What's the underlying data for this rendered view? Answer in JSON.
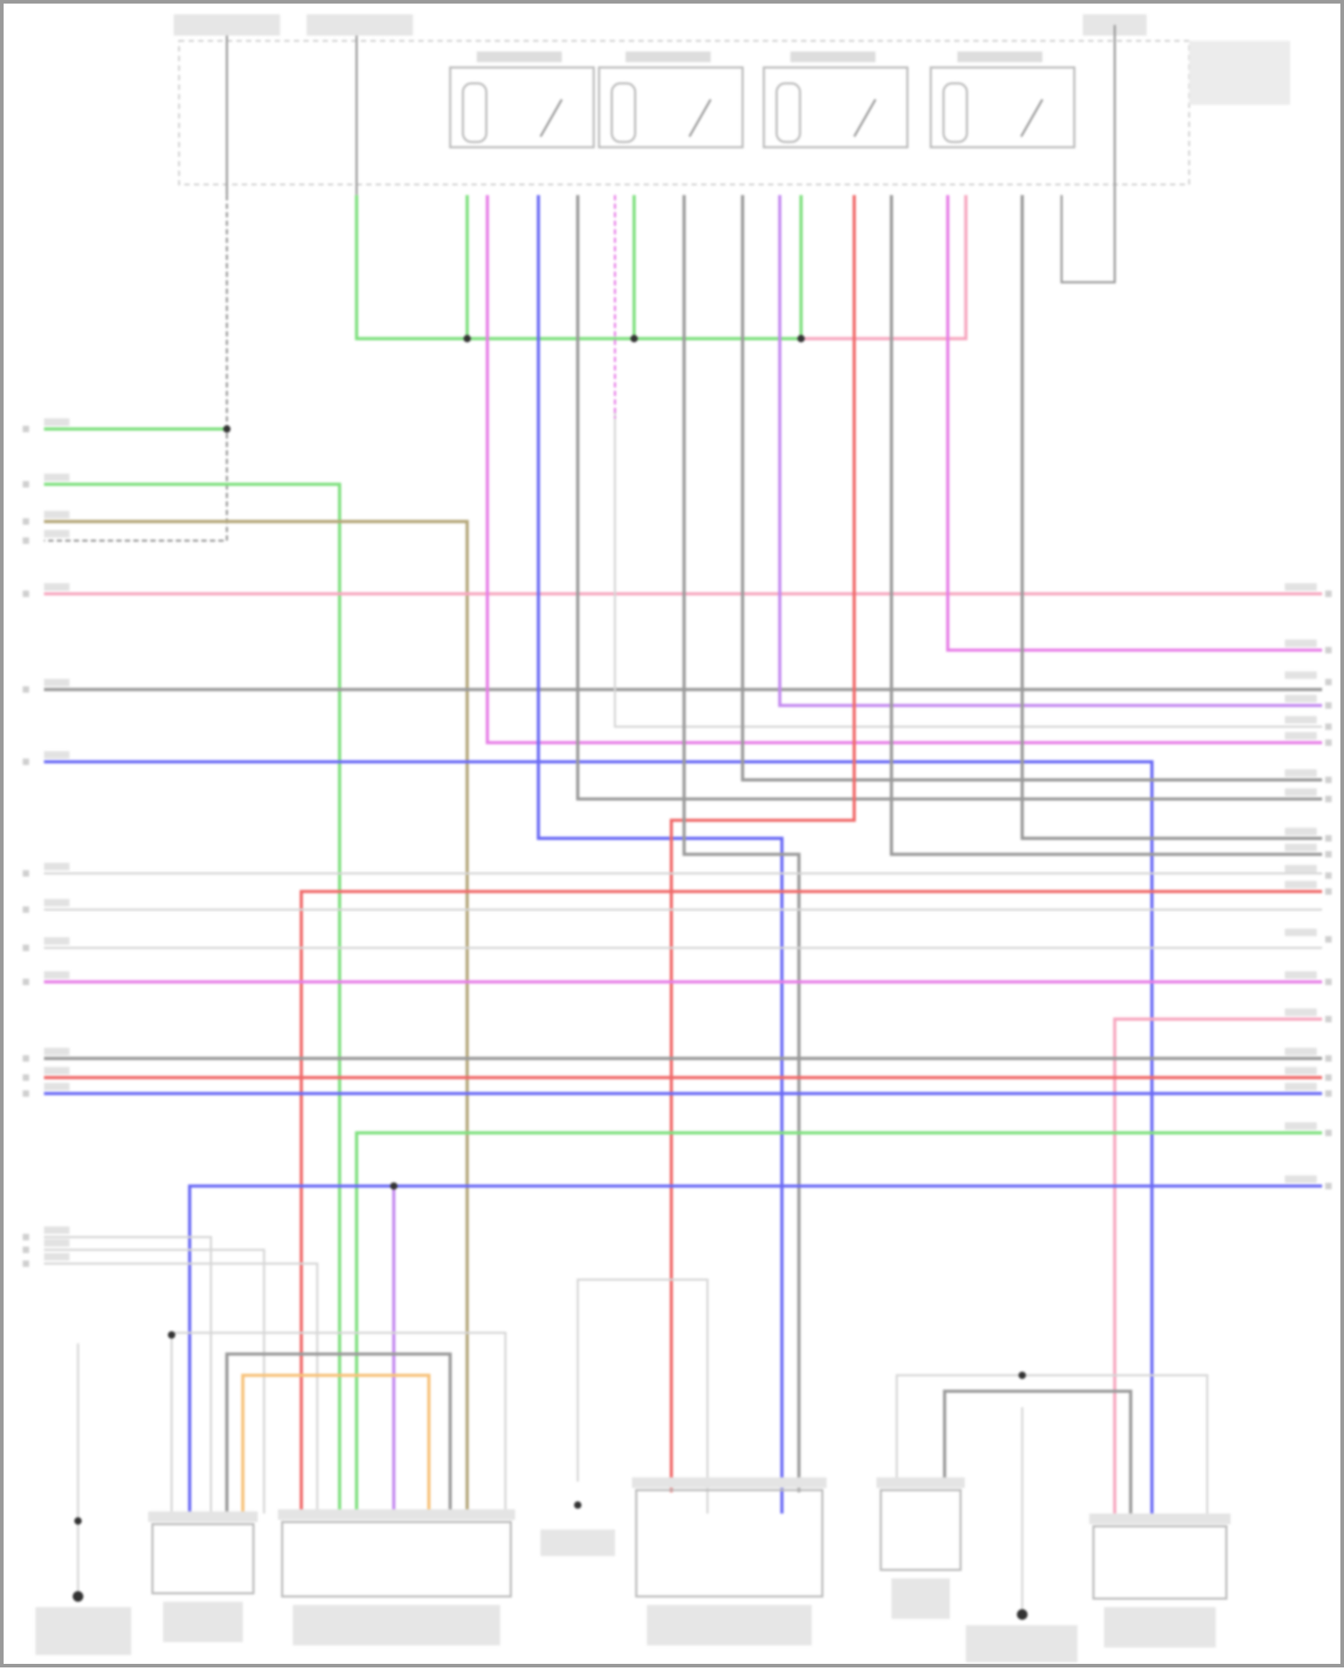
{
  "diagram": {
    "type": "wiring-diagram",
    "text_legible": false,
    "wire_colors": {
      "green": "#7ee07e",
      "tan": "#b5a77a",
      "pink": "#f7a8c0",
      "magenta": "#e77fe7",
      "violet": "#c48af0",
      "gray": "#9a9a9a",
      "lightgray": "#d6d6d6",
      "blue": "#6a6af5",
      "red": "#f06a6a",
      "orange": "#f7c27a"
    },
    "relays": 4,
    "components_bottom": 8
  }
}
